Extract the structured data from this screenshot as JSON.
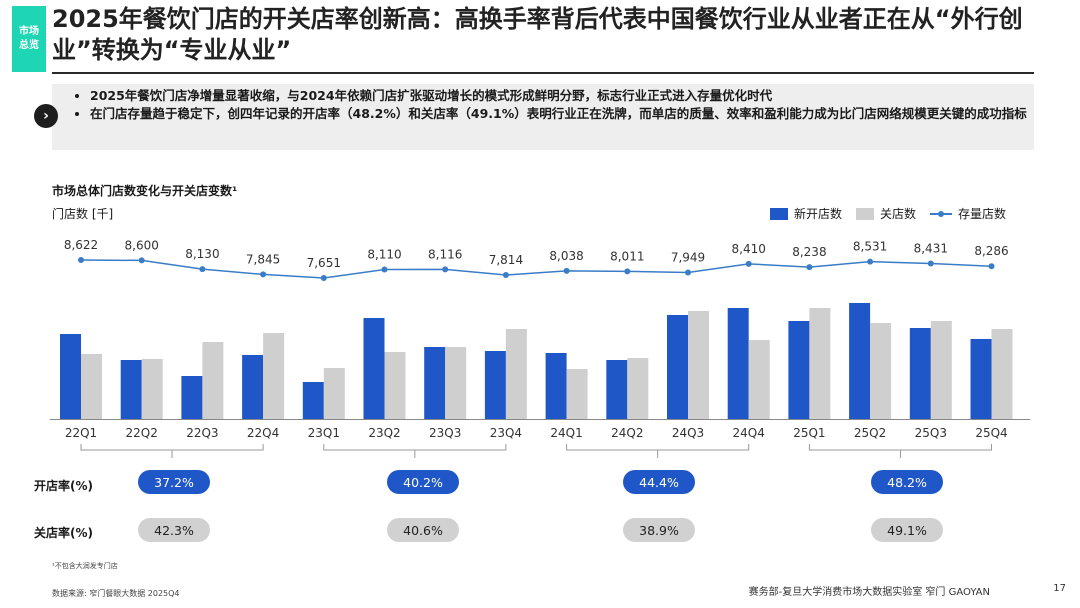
{
  "side_tag": "市场总览",
  "title": "2025年餐饮门店的开关店率创新高：高换手率背后代表中国餐饮行业从业者正在从“外行创业”转换为“专业从业”",
  "bullets": [
    "2025年餐饮门店净增量显著收缩，与2024年依赖门店扩张驱动增长的模式形成鲜明分野，标志行业正式进入存量优化时代",
    "在门店存量趋于稳定下，创四年记录的开店率（48.2%）和关店率（49.1%）表明行业正在洗牌，而单店的质量、效率和盈利能力成为比门店网络规模更关键的成功指标"
  ],
  "chart_title": "市场总体门店数变化与开关店变数¹",
  "colors": {
    "open": "#1f57c8",
    "close": "#cfcfcf",
    "stock": "#3a7cc7"
  },
  "chart_data": {
    "type": "bar",
    "ylabel": "门店数 [千]",
    "categories": [
      "22Q1",
      "22Q2",
      "22Q3",
      "22Q4",
      "23Q1",
      "23Q2",
      "23Q3",
      "23Q4",
      "24Q1",
      "24Q2",
      "24Q3",
      "24Q4",
      "25Q1",
      "25Q2",
      "25Q3",
      "25Q4"
    ],
    "series": [
      {
        "name": "新开店数",
        "type": "bar",
        "values": [
          85,
          59,
          43,
          64,
          37,
          101,
          72,
          68,
          66,
          59,
          104,
          111,
          98,
          116,
          91,
          80
        ]
      },
      {
        "name": "关店数",
        "type": "bar",
        "values": [
          65,
          60,
          77,
          86,
          51,
          67,
          72,
          90,
          50,
          61,
          108,
          79,
          111,
          96,
          98,
          90
        ]
      },
      {
        "name": "存量店数",
        "type": "line",
        "values": [
          8622,
          8600,
          8130,
          7845,
          7651,
          8110,
          8116,
          7814,
          8038,
          8011,
          7949,
          8410,
          8238,
          8531,
          8431,
          8286
        ]
      }
    ],
    "stock_labels": [
      "8,622",
      "8,600",
      "8,130",
      "7,845",
      "7,651",
      "8,110",
      "8,116",
      "7,814",
      "8,038",
      "8,011",
      "7,949",
      "8,410",
      "8,238",
      "8,531",
      "8,431",
      "8,286"
    ]
  },
  "rates": {
    "open_label": "开店率(%)",
    "close_label": "关店率(%)",
    "open": [
      "37.2%",
      "40.2%",
      "44.4%",
      "48.2%"
    ],
    "close": [
      "42.3%",
      "40.6%",
      "38.9%",
      "49.1%"
    ]
  },
  "footnote": "¹不包含大润发专门店",
  "source": "数据来源: 窄门餐眼大数据 2025Q4",
  "credit": "赛务部-复旦大学消费市场大数据实验室    窄门 GAOYAN",
  "page_number": "17"
}
